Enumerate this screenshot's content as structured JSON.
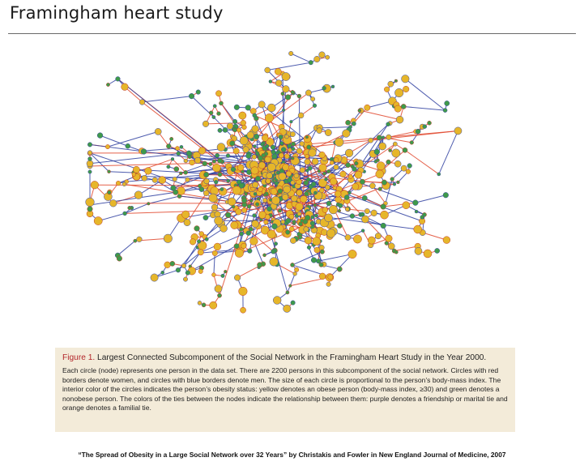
{
  "page": {
    "title": "Framingham heart study",
    "citation": "“The Spread of Obesity in a Large Social Network over 32 Years” by Christakis and Fowler in New England Journal of Medicine, 2007"
  },
  "figure": {
    "label": "Figure 1.",
    "title": " Largest Connected Subcomponent of the Social Network in the Framingham Heart Study in the Year 2000.",
    "body": "Each circle (node) represents one person in the data set. There are 2200 persons in this subcomponent of the social network. Circles with red borders denote women, and circles with blue borders denote men. The size of each circle is proportional to the person’s body-mass index. The interior color of the circles indicates the person’s obesity status: yellow denotes an obese person (body-mass index, ≥30) and green denotes a nonobese person. The colors of the ties between the nodes indicate the relationship between them: purple denotes a friendship or marital tie and orange denotes a familial tie."
  },
  "colors": {
    "obese_fill": "#e6b62a",
    "nonobese_fill": "#3f9a4a",
    "friend_tie": "#2f3fa0",
    "family_tie": "#e0452a",
    "caption_bg": "#f3ebd9",
    "figure_label": "#b3262a"
  }
}
